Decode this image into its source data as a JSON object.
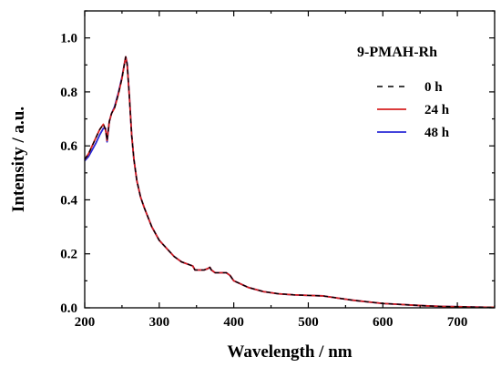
{
  "chart_data": {
    "type": "line",
    "title": "",
    "xlabel": "Wavelength / nm",
    "ylabel": "Intensity / a.u.",
    "xlim": [
      200,
      750
    ],
    "ylim": [
      0.0,
      1.1
    ],
    "x_ticks": [
      200,
      300,
      400,
      500,
      600,
      700
    ],
    "y_ticks": [
      0.0,
      0.2,
      0.4,
      0.6,
      0.8,
      1.0
    ],
    "x_tick_labels": [
      "200",
      "300",
      "400",
      "500",
      "600",
      "700"
    ],
    "y_tick_labels": [
      "0.0",
      "0.2",
      "0.4",
      "0.6",
      "0.8",
      "1.0"
    ],
    "grid": false,
    "legend_title": "9-PMAH-Rh",
    "legend_position": "top-right",
    "series": [
      {
        "name": "0 h",
        "color": "#000000",
        "dash": "dashed",
        "x": [
          200,
          205,
          210,
          215,
          220,
          225,
          228,
          230,
          233,
          236,
          240,
          245,
          250,
          253,
          255,
          257,
          260,
          263,
          266,
          270,
          275,
          280,
          290,
          300,
          310,
          320,
          330,
          340,
          345,
          348,
          350,
          360,
          365,
          368,
          370,
          375,
          380,
          390,
          395,
          400,
          420,
          440,
          460,
          480,
          500,
          520,
          540,
          560,
          580,
          600,
          620,
          640,
          660,
          680,
          700,
          720,
          740,
          750
        ],
        "y": [
          0.55,
          0.57,
          0.6,
          0.63,
          0.66,
          0.68,
          0.66,
          0.62,
          0.69,
          0.72,
          0.74,
          0.79,
          0.85,
          0.9,
          0.93,
          0.9,
          0.78,
          0.64,
          0.55,
          0.47,
          0.41,
          0.37,
          0.3,
          0.25,
          0.22,
          0.19,
          0.17,
          0.16,
          0.155,
          0.14,
          0.14,
          0.14,
          0.145,
          0.15,
          0.14,
          0.13,
          0.13,
          0.13,
          0.12,
          0.1,
          0.075,
          0.06,
          0.052,
          0.048,
          0.046,
          0.044,
          0.036,
          0.028,
          0.022,
          0.016,
          0.013,
          0.01,
          0.007,
          0.005,
          0.004,
          0.003,
          0.002,
          0.002
        ]
      },
      {
        "name": "24 h",
        "color": "#d62020",
        "dash": "solid",
        "x": [
          200,
          205,
          210,
          215,
          220,
          225,
          228,
          230,
          233,
          236,
          240,
          245,
          250,
          253,
          255,
          257,
          260,
          263,
          266,
          270,
          275,
          280,
          290,
          300,
          310,
          320,
          330,
          340,
          345,
          348,
          350,
          360,
          365,
          368,
          370,
          375,
          380,
          390,
          395,
          400,
          420,
          440,
          460,
          480,
          500,
          520,
          540,
          560,
          580,
          600,
          620,
          640,
          660,
          680,
          700,
          720,
          740,
          750
        ],
        "y": [
          0.55,
          0.57,
          0.6,
          0.63,
          0.66,
          0.68,
          0.66,
          0.62,
          0.69,
          0.72,
          0.74,
          0.79,
          0.85,
          0.9,
          0.93,
          0.9,
          0.78,
          0.64,
          0.55,
          0.47,
          0.41,
          0.37,
          0.3,
          0.25,
          0.22,
          0.19,
          0.17,
          0.16,
          0.155,
          0.14,
          0.14,
          0.14,
          0.145,
          0.15,
          0.14,
          0.13,
          0.13,
          0.13,
          0.12,
          0.1,
          0.075,
          0.06,
          0.052,
          0.048,
          0.046,
          0.044,
          0.036,
          0.028,
          0.022,
          0.016,
          0.013,
          0.01,
          0.007,
          0.005,
          0.004,
          0.003,
          0.002,
          0.002
        ]
      },
      {
        "name": "48 h",
        "color": "#2a2ad6",
        "dash": "solid",
        "x": [
          200,
          205,
          210,
          215,
          220,
          225,
          228,
          230,
          233,
          236,
          240,
          245,
          250,
          253,
          255,
          257,
          260,
          263,
          266,
          270,
          275,
          280,
          290,
          300,
          310,
          320,
          330,
          340,
          345,
          348,
          350,
          360,
          365,
          368,
          370,
          375,
          380,
          390,
          395,
          400,
          420,
          440,
          460,
          480,
          500,
          520,
          540,
          560,
          580,
          600,
          620,
          640,
          660,
          680,
          700,
          720,
          740,
          750
        ],
        "y": [
          0.545,
          0.56,
          0.585,
          0.61,
          0.64,
          0.665,
          0.665,
          0.615,
          0.69,
          0.72,
          0.745,
          0.795,
          0.855,
          0.9,
          0.93,
          0.905,
          0.78,
          0.64,
          0.55,
          0.47,
          0.41,
          0.37,
          0.3,
          0.25,
          0.22,
          0.19,
          0.17,
          0.16,
          0.155,
          0.14,
          0.14,
          0.14,
          0.145,
          0.15,
          0.14,
          0.13,
          0.13,
          0.13,
          0.12,
          0.1,
          0.075,
          0.06,
          0.052,
          0.048,
          0.046,
          0.044,
          0.036,
          0.028,
          0.022,
          0.016,
          0.013,
          0.01,
          0.007,
          0.005,
          0.004,
          0.003,
          0.002,
          0.002
        ]
      }
    ]
  }
}
